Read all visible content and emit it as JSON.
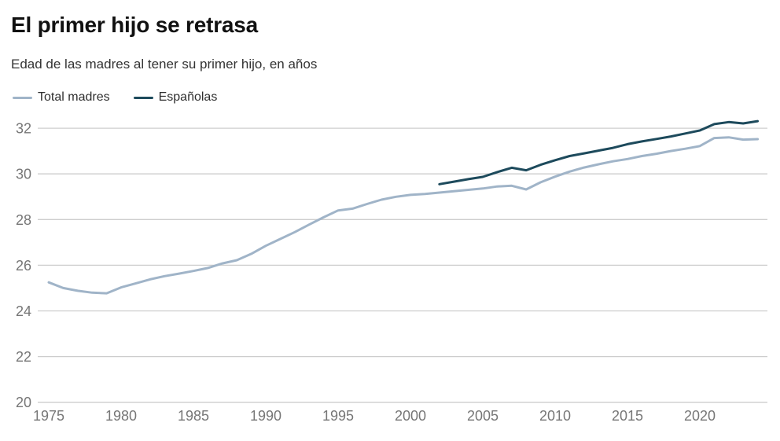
{
  "header": {
    "title": "El primer hijo se retrasa",
    "subtitle": "Edad de las madres al tener su primer hijo, en años"
  },
  "legend": {
    "items": [
      {
        "label": "Total madres",
        "color": "#a0b4c8"
      },
      {
        "label": "Españolas",
        "color": "#1d4a5c"
      }
    ]
  },
  "colors": {
    "background": "#ffffff",
    "title": "#111111",
    "subtitle": "#333333",
    "gridline": "#cdcdcd",
    "tick_label": "#767676",
    "series_total": "#a0b4c8",
    "series_espanolas": "#1d4a5c"
  },
  "chart_data": {
    "type": "line",
    "title": "El primer hijo se retrasa",
    "subtitle": "Edad de las madres al tener su primer hijo, en años",
    "xlabel": "",
    "ylabel": "",
    "grid": "horizontal",
    "legend_position": "top-left",
    "xlim": [
      1975,
      2024.8
    ],
    "ylim": [
      20,
      32.8
    ],
    "x_ticks": [
      1975,
      1980,
      1985,
      1990,
      1995,
      2000,
      2005,
      2010,
      2015,
      2020
    ],
    "y_ticks": [
      20,
      22,
      24,
      26,
      28,
      30,
      32
    ],
    "series": [
      {
        "name": "Total madres",
        "color": "#a0b4c8",
        "x": [
          1975,
          1976,
          1977,
          1978,
          1979,
          1980,
          1981,
          1982,
          1983,
          1984,
          1985,
          1986,
          1987,
          1988,
          1989,
          1990,
          1991,
          1992,
          1993,
          1994,
          1995,
          1996,
          1997,
          1998,
          1999,
          2000,
          2001,
          2002,
          2003,
          2004,
          2005,
          2006,
          2007,
          2008,
          2009,
          2010,
          2011,
          2012,
          2013,
          2014,
          2015,
          2016,
          2017,
          2018,
          2019,
          2020,
          2021,
          2022,
          2023,
          2024
        ],
        "values": [
          25.25,
          25.0,
          24.88,
          24.8,
          24.77,
          25.03,
          25.2,
          25.38,
          25.52,
          25.63,
          25.75,
          25.88,
          26.08,
          26.22,
          26.5,
          26.85,
          27.15,
          27.45,
          27.78,
          28.1,
          28.4,
          28.48,
          28.68,
          28.87,
          29.0,
          29.08,
          29.12,
          29.18,
          29.24,
          29.3,
          29.36,
          29.45,
          29.48,
          29.32,
          29.63,
          29.88,
          30.1,
          30.28,
          30.42,
          30.55,
          30.65,
          30.78,
          30.88,
          31.0,
          31.1,
          31.22,
          31.57,
          31.6,
          31.5,
          31.52
        ]
      },
      {
        "name": "Españolas",
        "color": "#1d4a5c",
        "x": [
          2002,
          2003,
          2004,
          2005,
          2006,
          2007,
          2008,
          2009,
          2010,
          2011,
          2012,
          2013,
          2014,
          2015,
          2016,
          2017,
          2018,
          2019,
          2020,
          2021,
          2022,
          2023,
          2024
        ],
        "values": [
          29.55,
          29.66,
          29.77,
          29.87,
          30.08,
          30.27,
          30.16,
          30.4,
          30.6,
          30.78,
          30.9,
          31.02,
          31.14,
          31.3,
          31.42,
          31.53,
          31.64,
          31.77,
          31.9,
          32.18,
          32.27,
          32.21,
          32.31
        ]
      }
    ]
  }
}
